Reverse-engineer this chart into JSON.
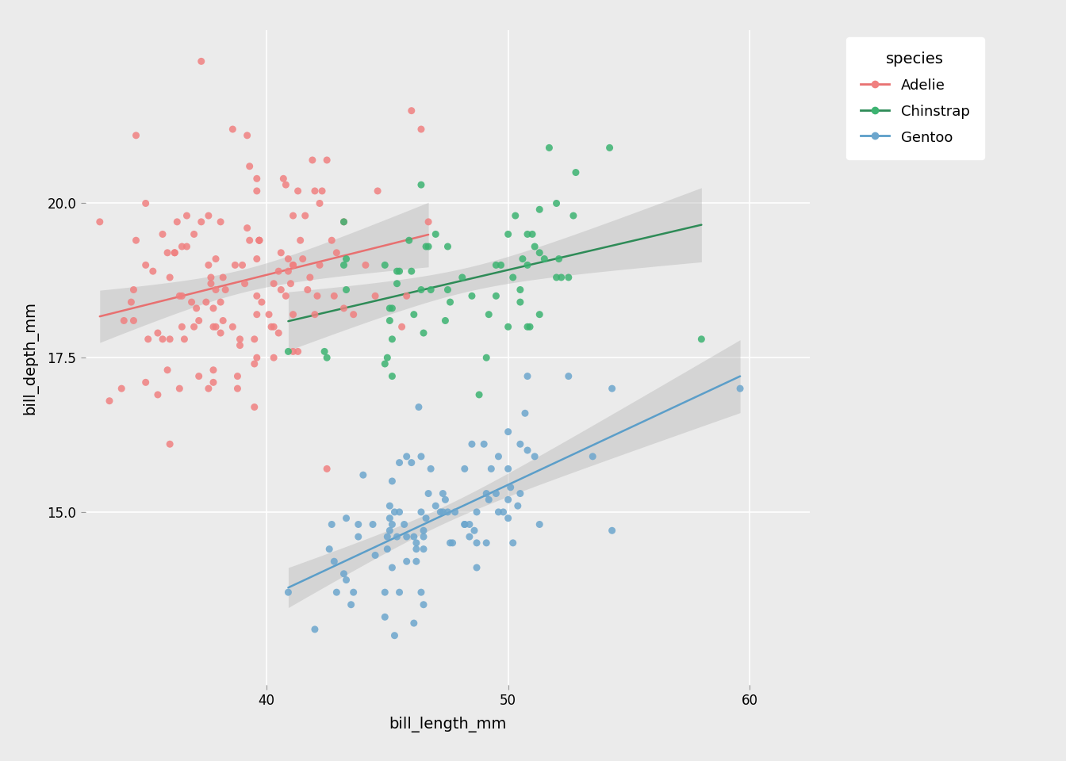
{
  "title": "",
  "xlabel": "bill_length_mm",
  "ylabel": "bill_depth_mm",
  "legend_title": "species",
  "legend_labels": [
    "Adelie",
    "Chinstrap",
    "Gentoo"
  ],
  "colors": {
    "Adelie": "#F08080",
    "Chinstrap": "#3CB371",
    "Gentoo": "#6CA6CD"
  },
  "line_colors": {
    "Adelie": "#E87070",
    "Chinstrap": "#2E8B57",
    "Gentoo": "#5B9EC9"
  },
  "background_color": "#EBEBEB",
  "panel_color": "#EBEBEB",
  "grid_color": "#FFFFFF",
  "point_size": 42,
  "point_alpha": 0.85,
  "line_width": 1.8,
  "ribbon_alpha": 0.35,
  "ribbon_color": "#AAAAAA",
  "xlim": [
    32.5,
    62.5
  ],
  "ylim": [
    12.2,
    22.8
  ],
  "xticks": [
    40,
    50,
    60
  ],
  "yticks": [
    15.0,
    17.5,
    20.0
  ],
  "figsize": [
    13.44,
    9.6
  ],
  "dpi": 100,
  "adelie_bill_length": [
    39.1,
    39.5,
    40.3,
    36.7,
    39.3,
    38.9,
    39.2,
    34.1,
    42.0,
    37.8,
    37.8,
    41.1,
    38.6,
    34.6,
    36.6,
    38.7,
    42.5,
    34.4,
    46.0,
    37.8,
    37.7,
    35.9,
    38.2,
    38.8,
    35.3,
    40.6,
    40.5,
    37.9,
    40.5,
    39.5,
    37.2,
    39.5,
    40.9,
    36.4,
    39.2,
    38.8,
    42.2,
    37.6,
    39.8,
    36.5,
    40.8,
    36.0,
    44.1,
    37.0,
    39.6,
    41.1,
    37.5,
    36.0,
    42.3,
    39.6,
    40.1,
    35.0,
    42.0,
    34.5,
    41.4,
    39.0,
    40.6,
    36.5,
    37.6,
    35.7,
    41.3,
    37.6,
    41.1,
    36.4,
    41.6,
    35.5,
    41.1,
    35.9,
    41.8,
    33.5,
    39.7,
    39.6,
    45.8,
    35.5,
    42.8,
    40.9,
    37.2,
    36.2,
    42.1,
    34.6,
    42.9,
    36.7,
    35.1,
    37.3,
    41.3,
    36.3,
    36.9,
    38.3,
    38.9,
    35.7,
    41.1,
    34.0,
    39.6,
    36.2,
    40.8,
    38.1,
    40.3,
    33.1,
    43.2,
    35.0,
    41.0,
    37.7,
    37.8,
    37.9,
    39.7,
    38.6,
    38.2,
    38.1,
    43.2,
    38.1,
    45.6,
    39.7,
    42.2,
    39.6,
    42.7,
    43.6,
    44.6,
    40.7,
    46.4,
    37.3,
    39.3,
    37.9,
    40.3,
    34.5,
    39.6,
    40.2,
    36.5,
    41.7,
    37.0,
    35.0,
    41.5,
    36.0,
    42.5,
    44.5,
    46.7,
    41.9,
    37.1
  ],
  "adelie_bill_depth": [
    18.7,
    17.4,
    18.0,
    19.3,
    20.6,
    17.8,
    19.6,
    18.1,
    20.2,
    17.1,
    17.3,
    17.6,
    21.2,
    21.1,
    17.8,
    19.0,
    20.7,
    18.4,
    21.5,
    18.3,
    18.7,
    19.2,
    18.1,
    17.2,
    18.9,
    18.6,
    17.9,
    18.6,
    18.9,
    16.7,
    18.1,
    17.8,
    18.9,
    17.0,
    21.1,
    17.0,
    20.0,
    19.0,
    18.4,
    18.0,
    20.3,
    17.8,
    19.0,
    18.0,
    20.4,
    19.8,
    18.4,
    18.8,
    20.2,
    18.2,
    18.2,
    17.1,
    18.2,
    18.6,
    19.4,
    19.0,
    19.2,
    18.5,
    19.8,
    17.8,
    20.2,
    17.0,
    19.0,
    18.5,
    19.8,
    16.9,
    18.2,
    17.3,
    18.8,
    16.8,
    19.4,
    19.1,
    18.5,
    17.9,
    18.5,
    19.1,
    17.2,
    19.2,
    18.5,
    19.4,
    19.2,
    19.8,
    17.8,
    19.7,
    17.6,
    19.7,
    18.4,
    18.6,
    17.7,
    19.5,
    19.0,
    17.0,
    18.5,
    19.2,
    18.5,
    17.9,
    18.7,
    19.7,
    18.3,
    20.0,
    18.7,
    18.8,
    18.0,
    18.0,
    19.4,
    18.0,
    18.8,
    18.4,
    19.7,
    19.7,
    18.0,
    19.4,
    19.0,
    20.2,
    19.4,
    18.2,
    20.2,
    20.4,
    21.2,
    22.3,
    19.4,
    19.1,
    17.5,
    18.1,
    17.5,
    18.0,
    19.3,
    18.6,
    19.5,
    19.0,
    19.1,
    16.1,
    15.7,
    18.5,
    19.7,
    20.7,
    18.3
  ],
  "chinstrap_bill_length": [
    46.5,
    50.0,
    51.3,
    45.4,
    52.7,
    45.2,
    46.1,
    51.3,
    46.0,
    51.3,
    46.6,
    51.7,
    47.0,
    52.0,
    45.9,
    50.5,
    50.3,
    58.0,
    46.4,
    49.2,
    42.4,
    48.5,
    43.2,
    50.6,
    46.7,
    52.0,
    50.5,
    49.5,
    46.4,
    52.8,
    40.9,
    54.2,
    42.5,
    51.0,
    49.7,
    47.5,
    47.6,
    52.1,
    47.5,
    52.2,
    45.5,
    49.5,
    44.9,
    50.8,
    43.3,
    50.2,
    45.1,
    50.9,
    45.0,
    51.5,
    45.4,
    51.1,
    48.8,
    48.1,
    45.1,
    45.2,
    45.2,
    49.1,
    52.5,
    47.4,
    50.0,
    44.9,
    50.8,
    43.3,
    43.2,
    46.8,
    50.8
  ],
  "chinstrap_bill_depth": [
    17.9,
    19.5,
    19.2,
    18.7,
    19.8,
    17.8,
    18.2,
    18.2,
    18.9,
    19.9,
    19.3,
    20.9,
    19.5,
    18.8,
    19.4,
    18.6,
    19.8,
    17.8,
    18.6,
    18.2,
    17.6,
    18.5,
    19.0,
    19.1,
    19.3,
    20.0,
    18.4,
    19.0,
    20.3,
    20.5,
    17.6,
    20.9,
    17.5,
    19.5,
    19.0,
    18.6,
    18.4,
    19.1,
    19.3,
    18.8,
    18.9,
    18.5,
    19.0,
    19.0,
    18.6,
    18.8,
    18.3,
    18.0,
    17.5,
    19.1,
    18.9,
    19.3,
    16.9,
    18.8,
    18.1,
    17.2,
    18.3,
    17.5,
    18.8,
    18.1,
    18.0,
    17.4,
    19.5,
    19.1,
    19.7,
    18.6,
    18.0
  ],
  "gentoo_bill_length": [
    46.1,
    50.0,
    48.7,
    50.0,
    47.6,
    46.5,
    45.4,
    46.7,
    43.3,
    46.8,
    40.9,
    49.0,
    45.5,
    48.4,
    45.8,
    49.3,
    42.0,
    49.2,
    46.2,
    48.7,
    50.2,
    45.1,
    46.5,
    46.3,
    42.9,
    46.1,
    44.5,
    47.8,
    48.2,
    50.0,
    47.3,
    42.8,
    45.1,
    59.6,
    49.1,
    48.4,
    42.6,
    44.4,
    44.0,
    48.7,
    42.7,
    49.6,
    45.3,
    49.6,
    50.5,
    43.6,
    45.5,
    50.5,
    44.9,
    45.2,
    46.6,
    48.5,
    45.1,
    50.1,
    46.5,
    45.0,
    43.8,
    45.5,
    43.2,
    50.4,
    45.3,
    46.2,
    45.7,
    54.3,
    45.8,
    49.8,
    46.2,
    49.5,
    43.5,
    50.7,
    47.7,
    46.4,
    48.2,
    46.5,
    46.4,
    48.6,
    47.5,
    51.1,
    45.2,
    45.2,
    49.1,
    52.5,
    47.4,
    50.0,
    44.9,
    50.8,
    43.3,
    50.8,
    43.8,
    45.0,
    47.0,
    51.3,
    47.2,
    53.5,
    46.0,
    46.4,
    48.2,
    47.3,
    54.3,
    45.8
  ],
  "gentoo_bill_depth": [
    13.2,
    16.3,
    14.1,
    15.2,
    14.5,
    13.5,
    14.6,
    15.3,
    13.9,
    15.7,
    13.7,
    16.1,
    13.7,
    14.6,
    14.6,
    15.7,
    13.1,
    15.2,
    14.5,
    14.5,
    14.5,
    14.9,
    14.7,
    16.7,
    13.7,
    14.6,
    14.3,
    15.0,
    14.8,
    14.9,
    15.3,
    14.2,
    15.1,
    17.0,
    14.5,
    14.8,
    14.4,
    14.8,
    15.6,
    15.0,
    14.8,
    15.9,
    13.0,
    15.0,
    15.3,
    13.7,
    15.8,
    16.1,
    13.7,
    14.8,
    14.9,
    16.1,
    14.7,
    15.4,
    14.6,
    14.4,
    14.8,
    15.0,
    14.0,
    15.1,
    15.0,
    14.2,
    14.8,
    17.0,
    14.2,
    15.0,
    14.4,
    15.3,
    13.5,
    16.6,
    14.5,
    13.7,
    14.8,
    14.4,
    15.0,
    14.7,
    15.0,
    15.9,
    15.5,
    14.1,
    15.3,
    17.2,
    15.2,
    15.7,
    13.3,
    17.2,
    14.9,
    16.0,
    14.6,
    14.6,
    15.1,
    14.8,
    15.0,
    15.9,
    15.8,
    15.9,
    15.7,
    15.0,
    14.7,
    15.9
  ]
}
